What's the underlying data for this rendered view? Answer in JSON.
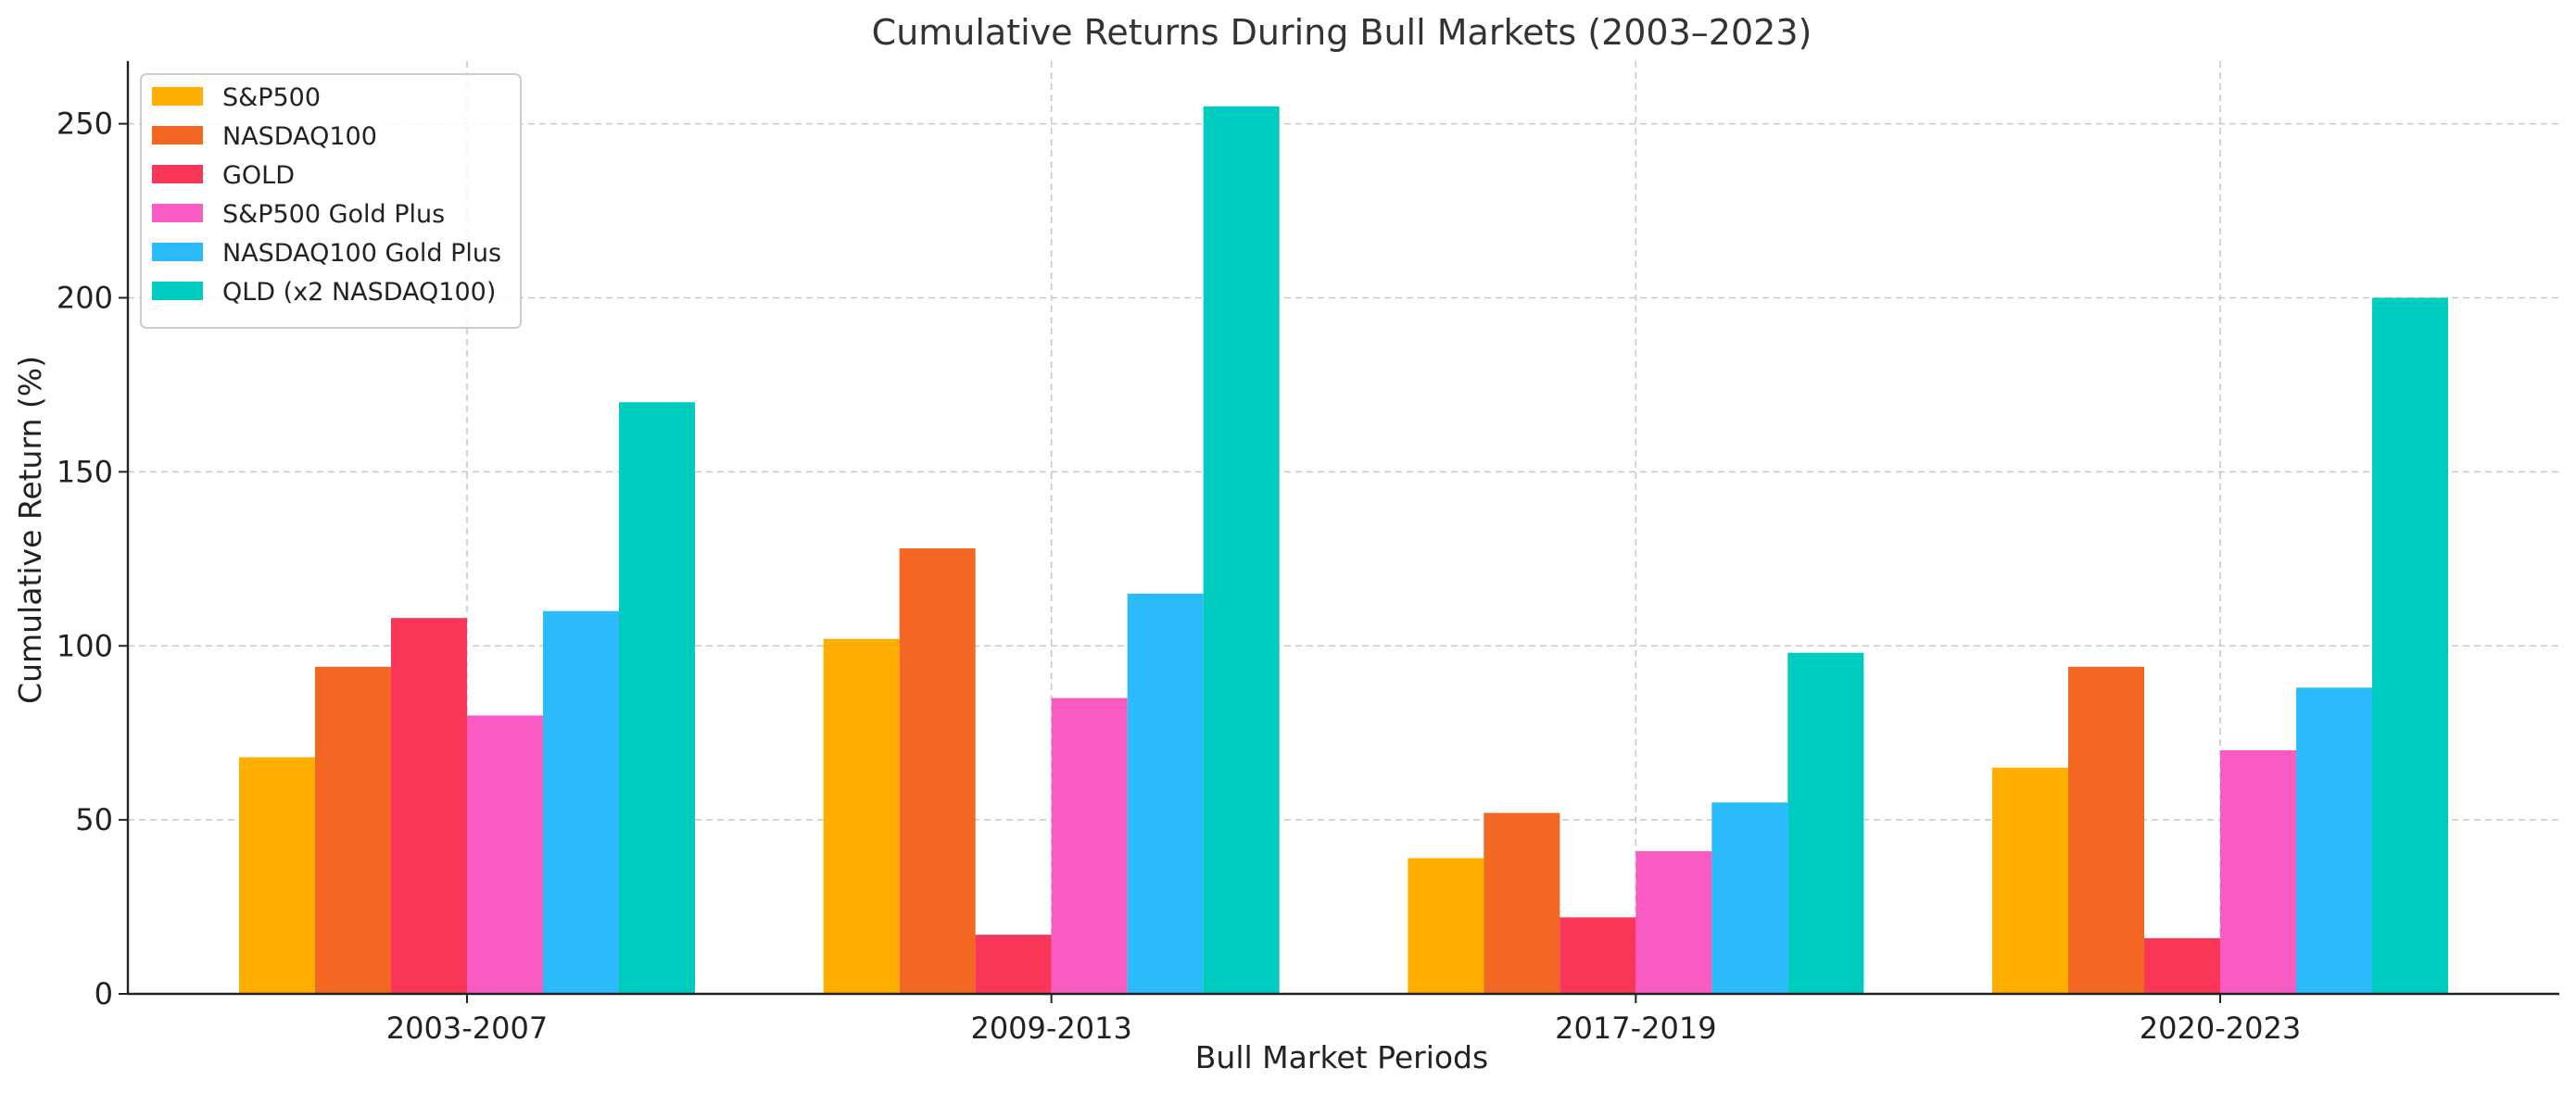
{
  "chart_data": {
    "type": "bar",
    "title": "Cumulative Returns During Bull Markets (2003–2023)",
    "xlabel": "Bull Market Periods",
    "ylabel": "Cumulative Return (%)",
    "categories": [
      "2003-2007",
      "2009-2013",
      "2017-2019",
      "2020-2023"
    ],
    "ylim": [
      0,
      268
    ],
    "yticks": [
      0,
      50,
      100,
      150,
      200,
      250
    ],
    "grid": true,
    "legend_position": "top-left",
    "series": [
      {
        "name": "S&P500",
        "color": "#FFAE00",
        "values": [
          68,
          102,
          39,
          65
        ]
      },
      {
        "name": "NASDAQ100",
        "color": "#F26722",
        "values": [
          94,
          128,
          52,
          94
        ]
      },
      {
        "name": "GOLD",
        "color": "#F73658",
        "values": [
          108,
          17,
          22,
          16
        ]
      },
      {
        "name": "S&P500 Gold Plus",
        "color": "#F85CC2",
        "values": [
          80,
          85,
          41,
          70
        ]
      },
      {
        "name": "NASDAQ100 Gold Plus",
        "color": "#2BBBFA",
        "values": [
          110,
          115,
          55,
          88
        ]
      },
      {
        "name": "QLD (x2 NASDAQ100)",
        "color": "#00CBBF",
        "values": [
          170,
          255,
          98,
          200
        ]
      }
    ]
  }
}
